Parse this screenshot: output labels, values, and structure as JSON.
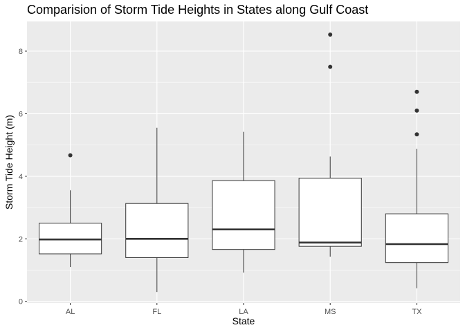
{
  "chart_data": {
    "type": "boxplot",
    "title": "Comparision of Storm Tide Heights in States along Gulf Coast",
    "xlabel": "State",
    "ylabel": "Storm Tide Height (m)",
    "ylim": [
      -0.05,
      8.95
    ],
    "yticks": [
      0,
      2,
      4,
      6,
      8
    ],
    "grid": true,
    "categories": [
      "AL",
      "FL",
      "LA",
      "MS",
      "TX"
    ],
    "boxes": [
      {
        "category": "AL",
        "whisker_low": 1.1,
        "q1": 1.52,
        "median": 1.98,
        "q3": 2.5,
        "whisker_high": 3.55,
        "outliers": [
          4.67
        ]
      },
      {
        "category": "FL",
        "whisker_low": 0.3,
        "q1": 1.4,
        "median": 2.0,
        "q3": 3.13,
        "whisker_high": 5.55,
        "outliers": []
      },
      {
        "category": "LA",
        "whisker_low": 0.92,
        "q1": 1.66,
        "median": 2.3,
        "q3": 3.86,
        "whisker_high": 5.42,
        "outliers": []
      },
      {
        "category": "MS",
        "whisker_low": 1.43,
        "q1": 1.76,
        "median": 1.88,
        "q3": 3.94,
        "whisker_high": 4.63,
        "outliers": [
          7.5,
          8.53
        ]
      },
      {
        "category": "TX",
        "whisker_low": 0.42,
        "q1": 1.24,
        "median": 1.83,
        "q3": 2.8,
        "whisker_high": 4.88,
        "outliers": [
          5.34,
          6.1,
          6.7
        ]
      }
    ],
    "colors": {
      "panel": "#ebebeb",
      "grid": "#ffffff",
      "box_fill": "#ffffff",
      "box_line": "#333333",
      "outlier": "#333333",
      "text": "#4d4d4d"
    }
  }
}
